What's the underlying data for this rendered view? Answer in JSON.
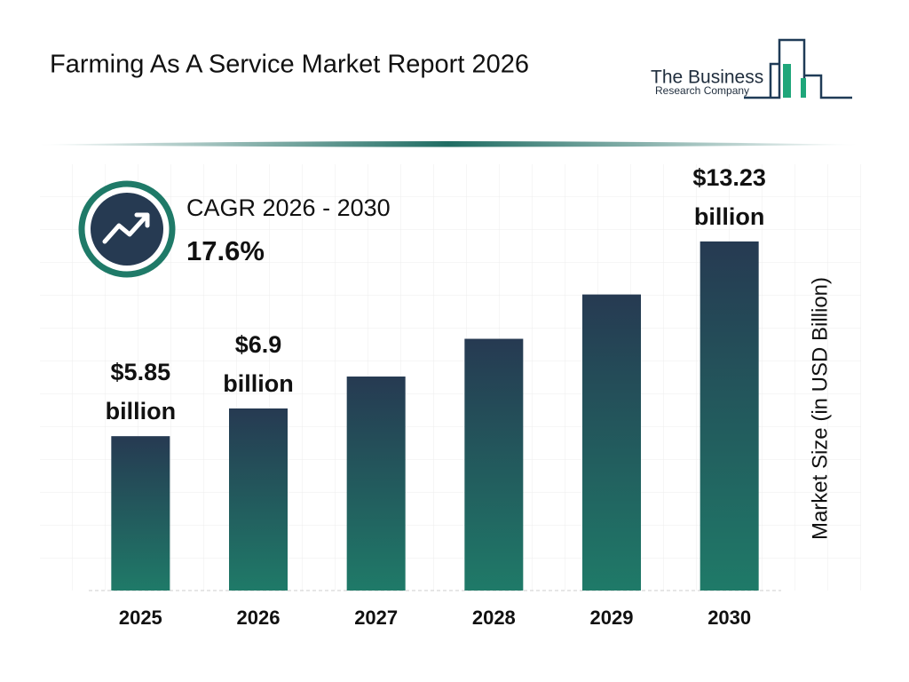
{
  "chart_data": {
    "type": "bar",
    "title": "Farming As A Service Market Report 2026",
    "brand": {
      "line1": "The Business",
      "line2": "Research Company"
    },
    "cagr_label": "CAGR 2026 - 2030",
    "cagr_value": "17.6%",
    "y_label": "Market Size (in USD Billion)",
    "categories": [
      "2025",
      "2026",
      "2027",
      "2028",
      "2029",
      "2030"
    ],
    "values": [
      5.85,
      6.9,
      8.11,
      9.54,
      11.22,
      13.23
    ],
    "value_labels": [
      "$5.85 billion",
      "$6.9 billion",
      null,
      null,
      null,
      "$13.23 billion"
    ],
    "gradient": [
      "#263a52",
      "#1f7a68"
    ],
    "ylim": [
      0,
      14
    ]
  }
}
